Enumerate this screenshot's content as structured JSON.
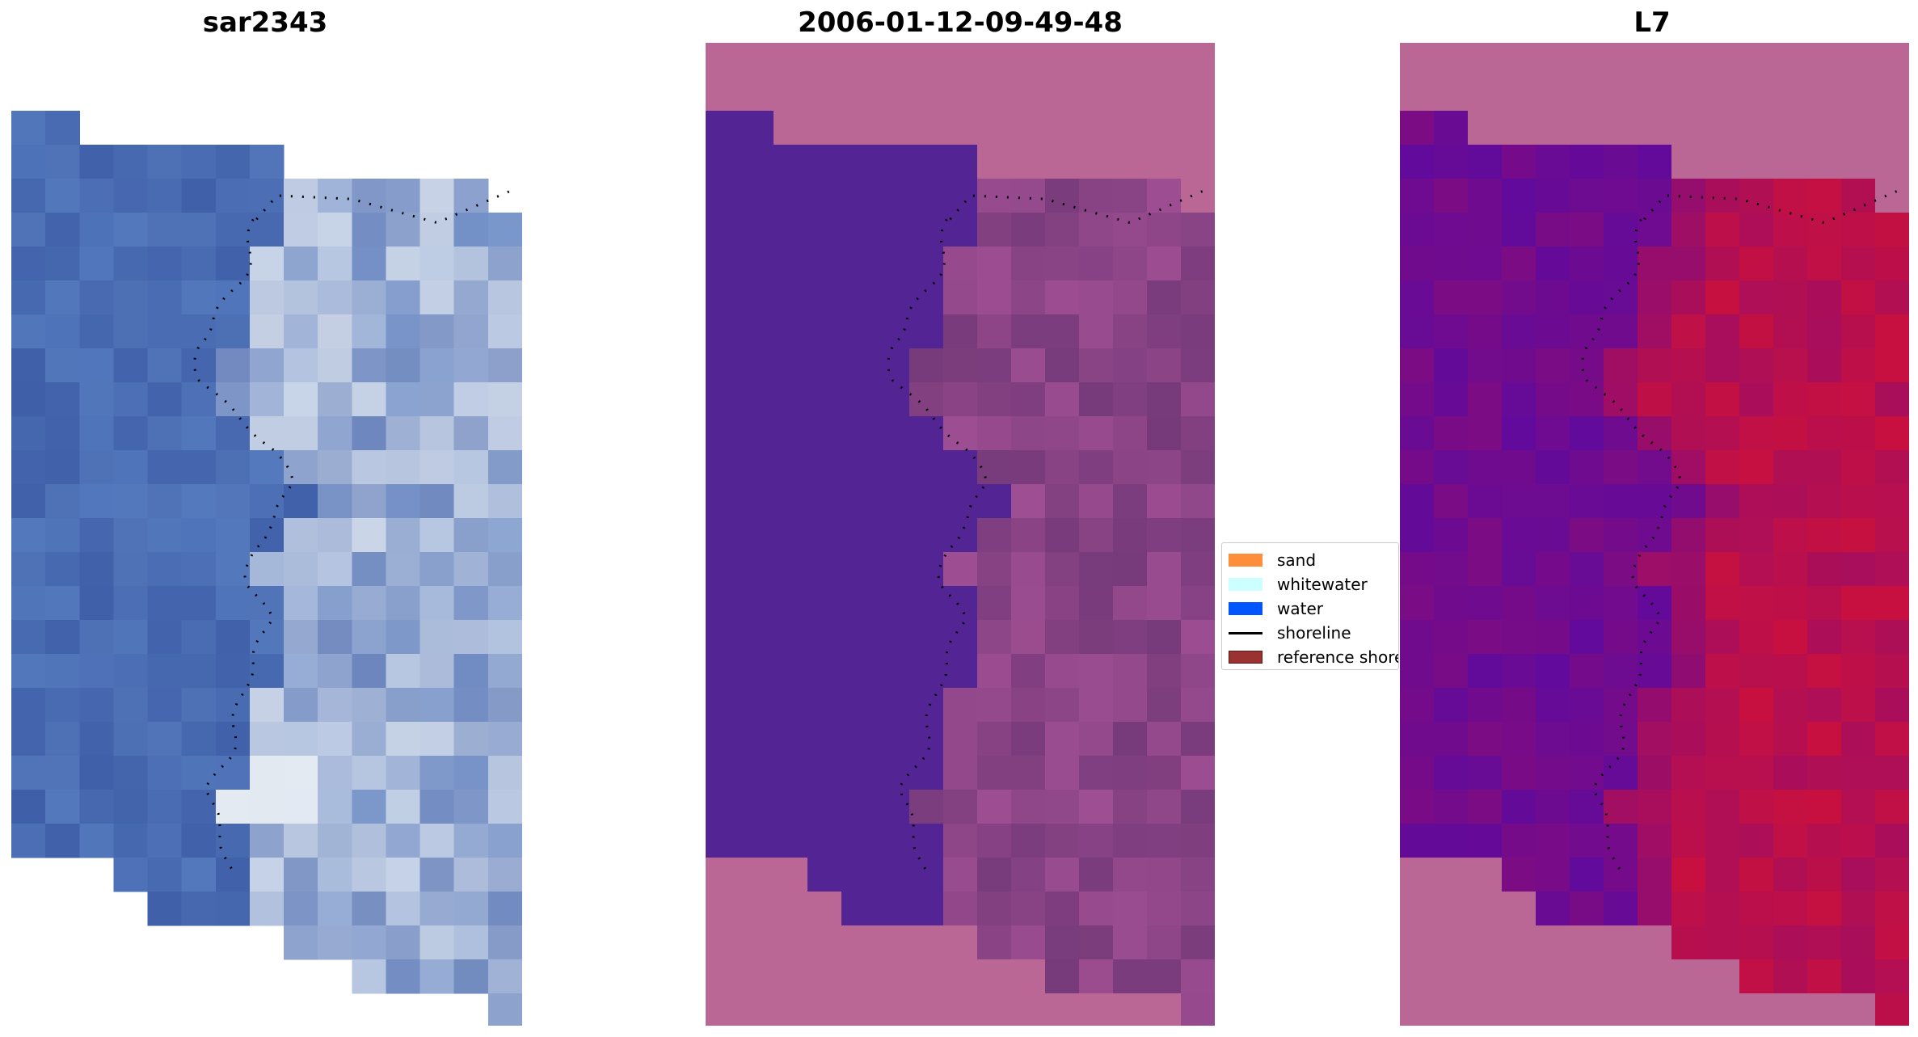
{
  "chart_data": [
    {
      "type": "heatmap",
      "title": "sar2343",
      "colormap": "rgb-composite",
      "base_color": "#3f5fa8",
      "overlay": "shoreline (dotted black)"
    },
    {
      "type": "heatmap",
      "title": "2006-01-12-09-49-48",
      "colormap": "classified",
      "water_color": "#532494",
      "land_color": "#8a4486",
      "nodata_color": "#bb6796"
    },
    {
      "type": "heatmap",
      "title": "L7",
      "colormap": "probability",
      "low_color": "#5c0aa0",
      "high_color": "#c8103f",
      "nodata_color": "#bb6796"
    }
  ],
  "legend": {
    "placement": "center",
    "items": [
      {
        "label": "sand",
        "kind": "patch",
        "color": "#fe8d3c"
      },
      {
        "label": "whitewater",
        "kind": "patch",
        "color": "#ccffff"
      },
      {
        "label": "water",
        "kind": "patch",
        "color": "#0055ff"
      },
      {
        "label": "shoreline",
        "kind": "line",
        "color": "#000000"
      },
      {
        "label": "reference shoreline",
        "kind": "patch",
        "color": "#9b3232"
      }
    ]
  }
}
